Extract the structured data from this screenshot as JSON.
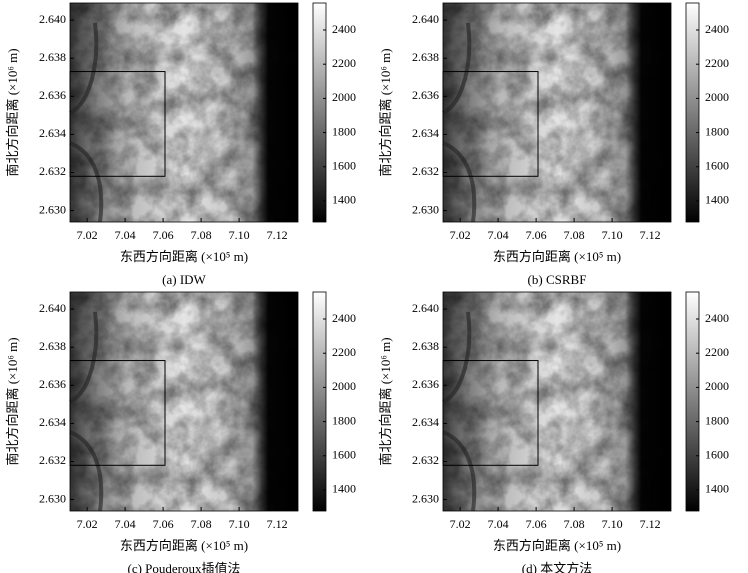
{
  "chart_data": [
    {
      "type": "heatmap",
      "title": "(a) IDW",
      "xlabel": "东西方向距离 (×10⁵ m)",
      "ylabel": "南北方向距离 (×10⁶ m)",
      "xlim": [
        7.011,
        7.131
      ],
      "ylim": [
        2.6294,
        2.6409
      ],
      "xticks": [
        7.02,
        7.04,
        7.06,
        7.08,
        {
          "value": 7.1,
          "label": "7.10"
        },
        7.12
      ],
      "yticks": [
        {
          "value": 2.63,
          "label": "2.630"
        },
        2.632,
        2.634,
        2.636,
        2.638,
        {
          "value": 2.64,
          "label": "2.640"
        }
      ],
      "clim": [
        1277,
        2558
      ],
      "cticks": [
        1400,
        1600,
        1800,
        2000,
        2200,
        2400
      ],
      "box": {
        "x": [
          7.011,
          7.061
        ],
        "y": [
          2.6318,
          2.6373
        ]
      }
    },
    {
      "type": "heatmap",
      "title": "(b) CSRBF",
      "xlabel": "东西方向距离 (×10⁵ m)",
      "ylabel": "南北方向距离 (×10⁶ m)",
      "xlim": [
        7.011,
        7.131
      ],
      "ylim": [
        2.6294,
        2.6409
      ],
      "xticks": [
        7.02,
        7.04,
        7.06,
        7.08,
        {
          "value": 7.1,
          "label": "7.10"
        },
        7.12
      ],
      "yticks": [
        {
          "value": 2.63,
          "label": "2.630"
        },
        2.632,
        2.634,
        2.636,
        2.638,
        {
          "value": 2.64,
          "label": "2.640"
        }
      ],
      "clim": [
        1277,
        2558
      ],
      "cticks": [
        1400,
        1600,
        1800,
        2000,
        2200,
        2400
      ],
      "box": {
        "x": [
          7.011,
          7.061
        ],
        "y": [
          2.6318,
          2.6373
        ]
      }
    },
    {
      "type": "heatmap",
      "title": "(c) Pouderoux插值法",
      "xlabel": "东西方向距离 (×10⁵ m)",
      "ylabel": "南北方向距离 (×10⁶ m)",
      "xlim": [
        7.011,
        7.131
      ],
      "ylim": [
        2.6294,
        2.6409
      ],
      "xticks": [
        7.02,
        7.04,
        7.06,
        7.08,
        {
          "value": 7.1,
          "label": "7.10"
        },
        7.12
      ],
      "yticks": [
        {
          "value": 2.63,
          "label": "2.630"
        },
        2.632,
        2.634,
        2.636,
        2.638,
        {
          "value": 2.64,
          "label": "2.640"
        }
      ],
      "clim": [
        1277,
        2558
      ],
      "cticks": [
        1400,
        1600,
        1800,
        2000,
        2200,
        2400
      ],
      "box": {
        "x": [
          7.011,
          7.061
        ],
        "y": [
          2.6318,
          2.6373
        ]
      }
    },
    {
      "type": "heatmap",
      "title": "(d) 本文方法",
      "xlabel": "东西方向距离 (×10⁵ m)",
      "ylabel": "南北方向距离 (×10⁶ m)",
      "xlim": [
        7.011,
        7.131
      ],
      "ylim": [
        2.6294,
        2.6409
      ],
      "xticks": [
        7.02,
        7.04,
        7.06,
        7.08,
        {
          "value": 7.1,
          "label": "7.10"
        },
        7.12
      ],
      "yticks": [
        {
          "value": 2.63,
          "label": "2.630"
        },
        2.632,
        2.634,
        2.636,
        2.638,
        {
          "value": 2.64,
          "label": "2.640"
        }
      ],
      "clim": [
        1277,
        2558
      ],
      "cticks": [
        1400,
        1600,
        1800,
        2000,
        2200,
        2400
      ],
      "box": {
        "x": [
          7.011,
          7.061
        ],
        "y": [
          2.6318,
          2.6373
        ]
      }
    }
  ]
}
